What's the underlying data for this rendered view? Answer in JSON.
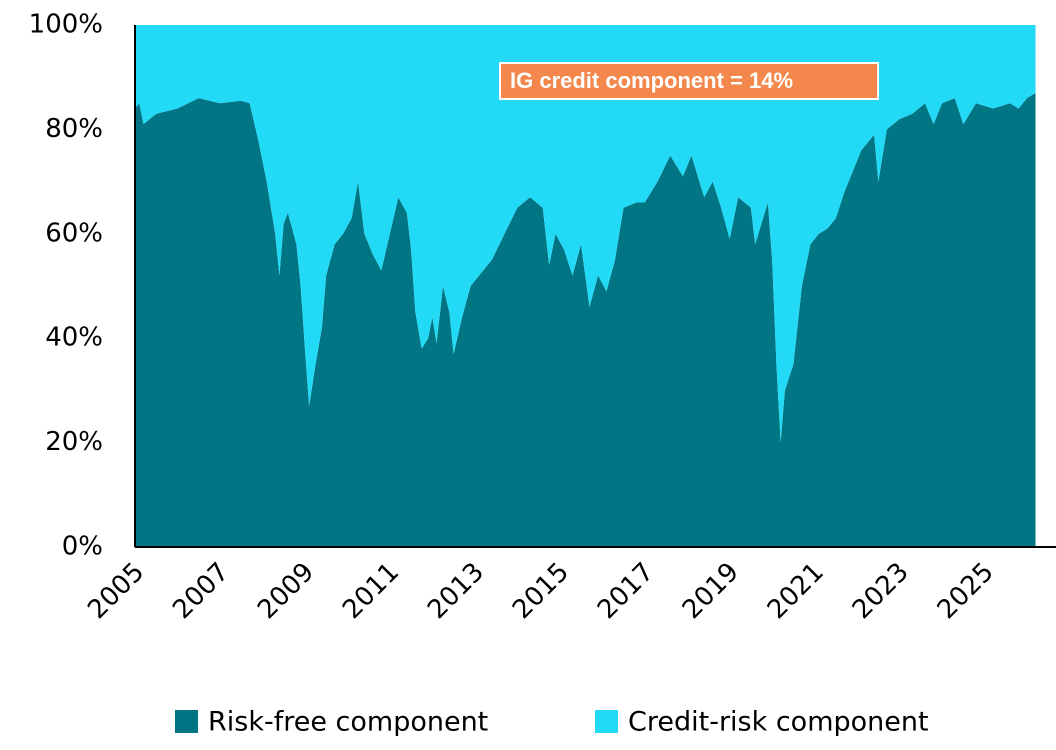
{
  "chart_data": {
    "type": "stacked_area",
    "annotation": "IG credit component = 14%",
    "x": [
      2005.0,
      2005.1,
      2005.2,
      2005.5,
      2006.0,
      2006.5,
      2007.0,
      2007.5,
      2007.7,
      2007.9,
      2008.1,
      2008.3,
      2008.4,
      2008.5,
      2008.6,
      2008.8,
      2008.9,
      2009.0,
      2009.1,
      2009.25,
      2009.4,
      2009.5,
      2009.7,
      2009.9,
      2010.1,
      2010.25,
      2010.4,
      2010.6,
      2010.8,
      2011.0,
      2011.2,
      2011.4,
      2011.5,
      2011.6,
      2011.75,
      2011.9,
      2012.0,
      2012.1,
      2012.25,
      2012.4,
      2012.5,
      2012.7,
      2012.9,
      2013.1,
      2013.4,
      2013.7,
      2014.0,
      2014.3,
      2014.6,
      2014.75,
      2014.9,
      2015.1,
      2015.3,
      2015.5,
      2015.7,
      2015.9,
      2016.1,
      2016.3,
      2016.5,
      2016.8,
      2017.0,
      2017.3,
      2017.6,
      2017.9,
      2018.1,
      2018.4,
      2018.6,
      2018.8,
      2019.0,
      2019.2,
      2019.5,
      2019.6,
      2019.9,
      2020.0,
      2020.1,
      2020.2,
      2020.3,
      2020.5,
      2020.7,
      2020.9,
      2021.1,
      2021.3,
      2021.5,
      2021.7,
      2021.9,
      2022.1,
      2022.4,
      2022.5,
      2022.7,
      2023.0,
      2023.3,
      2023.6,
      2023.8,
      2024.0,
      2024.3,
      2024.5,
      2024.8,
      2025.2,
      2025.6,
      2025.8,
      2026.0,
      2026.2
    ],
    "series": [
      {
        "name": "Risk-free component",
        "color": "#027584",
        "values": [
          84,
          85,
          81,
          83,
          84,
          86,
          85,
          85.5,
          85,
          78,
          70,
          60,
          52,
          62,
          64,
          58,
          50,
          38,
          27,
          35,
          42,
          52,
          58,
          60,
          63,
          70,
          60,
          56,
          53,
          60,
          67,
          64,
          57,
          45,
          38,
          40,
          44,
          39,
          50,
          45,
          37,
          44,
          50,
          52,
          55,
          60,
          65,
          67,
          65,
          54,
          60,
          57,
          52,
          58,
          46,
          52,
          49,
          55,
          65,
          66,
          66,
          70,
          75,
          71,
          75,
          67,
          70,
          65,
          59,
          67,
          65,
          58,
          66,
          55,
          35,
          20,
          30,
          35,
          50,
          58,
          60,
          61,
          63,
          68,
          72,
          76,
          79,
          70,
          80,
          82,
          83,
          85,
          81,
          85,
          86,
          81,
          85,
          84,
          85,
          84,
          86,
          87
        ]
      },
      {
        "name": "Credit-risk component",
        "color": "#22daf6",
        "values": [
          16,
          15,
          19,
          17,
          16,
          14,
          15,
          14.5,
          15,
          22,
          30,
          40,
          48,
          38,
          36,
          42,
          50,
          62,
          73,
          65,
          58,
          48,
          42,
          40,
          37,
          30,
          40,
          44,
          47,
          40,
          33,
          36,
          43,
          55,
          62,
          60,
          56,
          61,
          50,
          55,
          63,
          56,
          50,
          48,
          45,
          40,
          35,
          33,
          35,
          46,
          40,
          43,
          48,
          42,
          54,
          48,
          51,
          45,
          35,
          34,
          34,
          30,
          25,
          29,
          25,
          33,
          30,
          35,
          41,
          33,
          35,
          42,
          34,
          45,
          65,
          80,
          70,
          65,
          50,
          42,
          40,
          39,
          37,
          32,
          28,
          24,
          21,
          30,
          20,
          18,
          17,
          15,
          19,
          15,
          14,
          19,
          15,
          16,
          15,
          16,
          14,
          13
        ]
      }
    ],
    "xlim": [
      2005,
      2026.4
    ],
    "xticks": [
      2005,
      2007,
      2009,
      2011,
      2013,
      2015,
      2017,
      2019,
      2021,
      2023,
      2025
    ],
    "ylim": [
      0,
      100
    ],
    "yticks": [
      {
        "value": 0,
        "label": "0%"
      },
      {
        "value": 20,
        "label": "20%"
      },
      {
        "value": 40,
        "label": "40%"
      },
      {
        "value": 60,
        "label": "60%"
      },
      {
        "value": 80,
        "label": "80%"
      },
      {
        "value": 100,
        "label": "100%"
      }
    ],
    "legend": "bottom"
  }
}
